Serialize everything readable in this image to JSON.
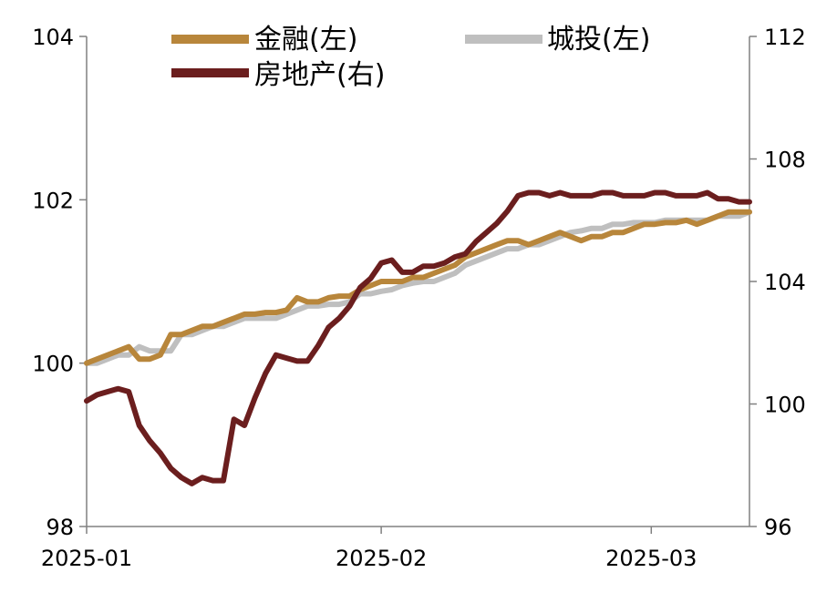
{
  "chart_data": {
    "type": "line",
    "title": "",
    "xlabel": "",
    "ylabel": "",
    "x_ticks": [
      "2025-01",
      "2025-02",
      "2025-03"
    ],
    "y_left": {
      "ticks": [
        "98",
        "100",
        "102",
        "104"
      ],
      "range": [
        98,
        104
      ]
    },
    "y_right": {
      "ticks": [
        "96",
        "100",
        "104",
        "108",
        "112"
      ],
      "range": [
        96,
        112
      ]
    },
    "grid": false,
    "legend_position": "top",
    "series": [
      {
        "name": "金融(左)",
        "axis": "left",
        "color": "#B8863B",
        "x": [
          0,
          3,
          6,
          9,
          12,
          15,
          18,
          21,
          24,
          27,
          30,
          33,
          36,
          39,
          42,
          45,
          48,
          51,
          54,
          57,
          60,
          63,
          66,
          69,
          72,
          75,
          78,
          81,
          84,
          87,
          90,
          93,
          96,
          99,
          102,
          105,
          108,
          111,
          114,
          117,
          120,
          123,
          126,
          129,
          132,
          135,
          138,
          141,
          144,
          147,
          150,
          153,
          156,
          159,
          162,
          165,
          168,
          171,
          174,
          177,
          180,
          183,
          186,
          189
        ],
        "values": [
          100.0,
          100.05,
          100.1,
          100.15,
          100.2,
          100.05,
          100.05,
          100.1,
          100.35,
          100.35,
          100.4,
          100.45,
          100.45,
          100.5,
          100.55,
          100.6,
          100.6,
          100.62,
          100.62,
          100.65,
          100.8,
          100.75,
          100.75,
          100.8,
          100.82,
          100.82,
          100.9,
          100.95,
          101.0,
          101.0,
          101.0,
          101.05,
          101.05,
          101.1,
          101.15,
          101.2,
          101.3,
          101.35,
          101.4,
          101.45,
          101.5,
          101.5,
          101.45,
          101.5,
          101.55,
          101.6,
          101.55,
          101.5,
          101.55,
          101.55,
          101.6,
          101.6,
          101.65,
          101.7,
          101.7,
          101.72,
          101.72,
          101.75,
          101.7,
          101.75,
          101.8,
          101.85,
          101.85,
          101.85
        ]
      },
      {
        "name": "城投(左)",
        "axis": "left",
        "color": "#BFBFBF",
        "x": [
          0,
          3,
          6,
          9,
          12,
          15,
          18,
          21,
          24,
          27,
          30,
          33,
          36,
          39,
          42,
          45,
          48,
          51,
          54,
          57,
          60,
          63,
          66,
          69,
          72,
          75,
          78,
          81,
          84,
          87,
          90,
          93,
          96,
          99,
          102,
          105,
          108,
          111,
          114,
          117,
          120,
          123,
          126,
          129,
          132,
          135,
          138,
          141,
          144,
          147,
          150,
          153,
          156,
          159,
          162,
          165,
          168,
          171,
          174,
          177,
          180,
          183,
          186,
          189
        ],
        "values": [
          100.0,
          100.0,
          100.05,
          100.1,
          100.1,
          100.2,
          100.15,
          100.15,
          100.15,
          100.35,
          100.35,
          100.4,
          100.45,
          100.45,
          100.5,
          100.55,
          100.55,
          100.55,
          100.55,
          100.6,
          100.65,
          100.7,
          100.7,
          100.72,
          100.72,
          100.75,
          100.85,
          100.85,
          100.88,
          100.9,
          100.95,
          100.98,
          101.0,
          101.0,
          101.05,
          101.1,
          101.2,
          101.25,
          101.3,
          101.35,
          101.4,
          101.4,
          101.45,
          101.45,
          101.5,
          101.55,
          101.6,
          101.62,
          101.65,
          101.65,
          101.7,
          101.7,
          101.72,
          101.72,
          101.72,
          101.75,
          101.75,
          101.75,
          101.75,
          101.75,
          101.8,
          101.8,
          101.8,
          101.85
        ]
      },
      {
        "name": "房地产(右)",
        "axis": "right",
        "color": "#6B1E1E",
        "x": [
          0,
          3,
          6,
          9,
          12,
          15,
          18,
          21,
          24,
          27,
          30,
          33,
          36,
          39,
          42,
          45,
          48,
          51,
          54,
          57,
          60,
          63,
          66,
          69,
          72,
          75,
          78,
          81,
          84,
          87,
          90,
          93,
          96,
          99,
          102,
          105,
          108,
          111,
          114,
          117,
          120,
          123,
          126,
          129,
          132,
          135,
          138,
          141,
          144,
          147,
          150,
          153,
          156,
          159,
          162,
          165,
          168,
          171,
          174,
          177,
          180,
          183,
          186,
          189
        ],
        "values": [
          100.1,
          100.3,
          100.4,
          100.5,
          100.4,
          99.3,
          98.8,
          98.4,
          97.9,
          97.6,
          97.4,
          97.6,
          97.5,
          97.5,
          99.5,
          99.3,
          100.2,
          101.0,
          101.6,
          101.5,
          101.4,
          101.4,
          101.9,
          102.5,
          102.8,
          103.2,
          103.8,
          104.1,
          104.6,
          104.7,
          104.3,
          104.3,
          104.5,
          104.5,
          104.6,
          104.8,
          104.9,
          105.3,
          105.6,
          105.9,
          106.3,
          106.8,
          106.9,
          106.9,
          106.8,
          106.9,
          106.8,
          106.8,
          106.8,
          106.9,
          106.9,
          106.8,
          106.8,
          106.8,
          106.9,
          106.9,
          106.8,
          106.8,
          106.8,
          106.9,
          106.7,
          106.7,
          106.6,
          106.6
        ]
      }
    ]
  }
}
